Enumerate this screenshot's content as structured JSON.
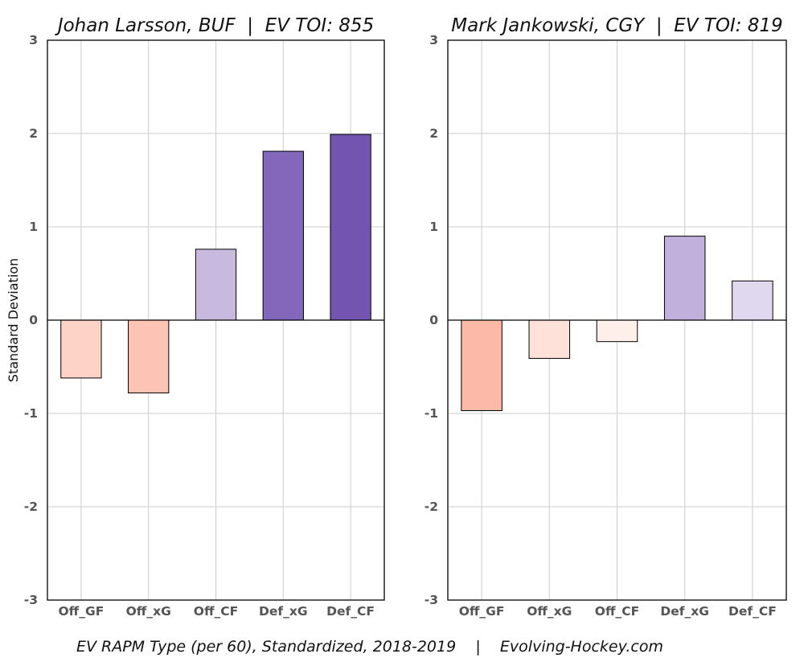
{
  "chart_data": [
    {
      "type": "bar",
      "title": "Johan Larsson, BUF  |  EV TOI: 855",
      "ylabel": "Standard Deviation",
      "ylim": [
        -3,
        3
      ],
      "yticks": [
        -3,
        -2,
        -1,
        0,
        1,
        2,
        3
      ],
      "grid": true,
      "categories": [
        "Off_GF",
        "Off_xG",
        "Off_CF",
        "Def_xG",
        "Def_CF"
      ],
      "values": [
        -0.62,
        -0.78,
        0.76,
        1.81,
        1.99
      ],
      "colors": [
        "#fdd3c8",
        "#fdc4b5",
        "#c8b9df",
        "#8367bb",
        "#7355b1"
      ]
    },
    {
      "type": "bar",
      "title": "Mark Jankowski, CGY  |  EV TOI: 819",
      "ylabel": "",
      "ylim": [
        -3,
        3
      ],
      "yticks": [
        -3,
        -2,
        -1,
        0,
        1,
        2,
        3
      ],
      "grid": true,
      "categories": [
        "Off_GF",
        "Off_xG",
        "Off_CF",
        "Def_xG",
        "Def_CF"
      ],
      "values": [
        -0.97,
        -0.41,
        -0.23,
        0.9,
        0.42
      ],
      "colors": [
        "#fdb9a7",
        "#fee1d9",
        "#feefeb",
        "#c1b0dc",
        "#e0d8ee"
      ]
    }
  ],
  "caption": "EV RAPM Type (per 60), Standardized, 2018-2019    |    Evolving-Hockey.com"
}
